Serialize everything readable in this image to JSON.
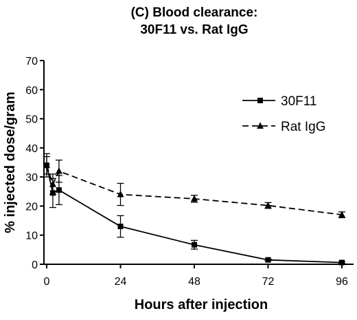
{
  "chart_data": {
    "type": "line",
    "title": "(C) Blood clearance:",
    "subtitle": "30F11 vs. Rat IgG",
    "xlabel": "Hours after injection",
    "ylabel": "% injected dose/gram",
    "xlim": [
      0,
      96
    ],
    "ylim": [
      0,
      70
    ],
    "x_ticks": [
      "0",
      "24",
      "48",
      "72",
      "96"
    ],
    "y_ticks": [
      "0",
      "10",
      "20",
      "30",
      "40",
      "50",
      "60",
      "70"
    ],
    "grid": false,
    "legend_position": "top-right",
    "series": [
      {
        "name": "30F11",
        "marker": "square",
        "line_style": "solid",
        "color": "#000000",
        "points": [
          {
            "x": 0,
            "y": 34,
            "err": 3
          },
          {
            "x": 2,
            "y": 24.5,
            "err": 5
          },
          {
            "x": 4,
            "y": 25.5,
            "err": 5
          },
          {
            "x": 24,
            "y": 13,
            "err": 3.7
          },
          {
            "x": 48,
            "y": 6.7,
            "err": 1.5
          },
          {
            "x": 72,
            "y": 1.5,
            "err": 0.3
          },
          {
            "x": 96,
            "y": 0.6,
            "err": 0.3
          }
        ]
      },
      {
        "name": "Rat IgG",
        "marker": "triangle",
        "line_style": "dashed",
        "color": "#000000",
        "points": [
          {
            "x": 0,
            "y": 34,
            "err": 4
          },
          {
            "x": 2,
            "y": 27.5,
            "err": 3.5
          },
          {
            "x": 4,
            "y": 32,
            "err": 3.8
          },
          {
            "x": 24,
            "y": 24,
            "err": 3.8
          },
          {
            "x": 48,
            "y": 22.5,
            "err": 1.2
          },
          {
            "x": 72,
            "y": 20.2,
            "err": 1
          },
          {
            "x": 96,
            "y": 17,
            "err": 1
          }
        ]
      }
    ]
  }
}
